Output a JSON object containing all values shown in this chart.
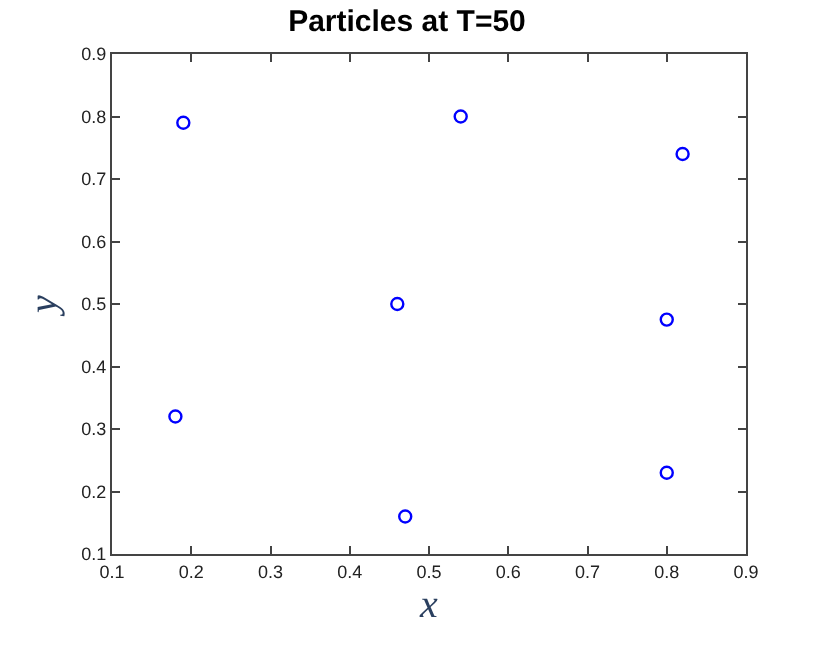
{
  "chart_data": {
    "type": "scatter",
    "title": "Particles at T=50",
    "xlabel": "x",
    "ylabel": "y",
    "series": [
      {
        "color": "#0000ff",
        "x": [
          0.19,
          0.54,
          0.82,
          0.46,
          0.8,
          0.18,
          0.47,
          0.8
        ],
        "values": [
          0.79,
          0.8,
          0.74,
          0.5,
          0.475,
          0.32,
          0.16,
          0.23
        ]
      }
    ],
    "marker": "circle",
    "xlim": [
      0.1,
      0.9
    ],
    "xticks": [
      0.1,
      0.2,
      0.3,
      0.4,
      0.5,
      0.6,
      0.7,
      0.8,
      0.9
    ],
    "ylim": [
      0.1,
      0.9
    ],
    "yticks": [
      0.1,
      0.2,
      0.3,
      0.4,
      0.5,
      0.6,
      0.7,
      0.8,
      0.9
    ]
  }
}
